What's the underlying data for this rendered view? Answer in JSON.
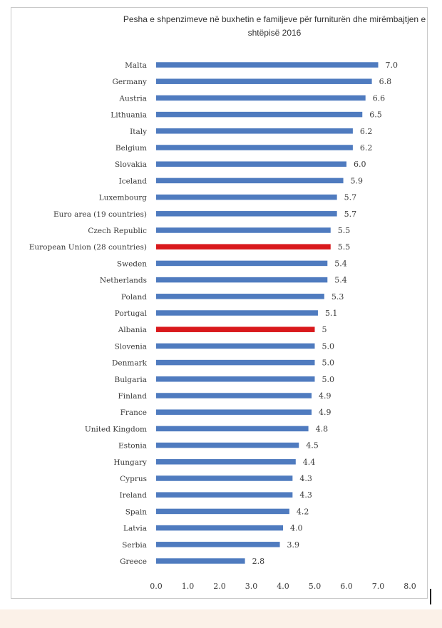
{
  "chart_data": {
    "type": "bar",
    "orientation": "horizontal",
    "title": "Pesha e shpenzimeve në buxhetin e familjeve për furniturën dhe mirëmbajtjen e shtëpisë  2016",
    "categories": [
      "Malta",
      "Germany",
      "Austria",
      "Lithuania",
      "Italy",
      "Belgium",
      "Slovakia",
      "Iceland",
      "Luxembourg",
      "Euro area (19 countries)",
      "Czech Republic",
      "European Union (28 countries)",
      "Sweden",
      "Netherlands",
      "Poland",
      "Portugal",
      "Albania",
      "Slovenia",
      "Denmark",
      "Bulgaria",
      "Finland",
      "France",
      "United Kingdom",
      "Estonia",
      "Hungary",
      "Cyprus",
      "Ireland",
      "Spain",
      "Latvia",
      "Serbia",
      "Greece"
    ],
    "values": [
      7.0,
      6.8,
      6.6,
      6.5,
      6.2,
      6.2,
      6.0,
      5.9,
      5.7,
      5.7,
      5.5,
      5.5,
      5.4,
      5.4,
      5.3,
      5.1,
      5,
      5.0,
      5.0,
      5.0,
      4.9,
      4.9,
      4.8,
      4.5,
      4.4,
      4.3,
      4.3,
      4.2,
      4.0,
      3.9,
      2.8
    ],
    "value_labels": [
      "7.0",
      "6.8",
      "6.6",
      "6.5",
      "6.2",
      "6.2",
      "6.0",
      "5.9",
      "5.7",
      "5.7",
      "5.5",
      "5.5",
      "5.4",
      "5.4",
      "5.3",
      "5.1",
      "5",
      "5.0",
      "5.0",
      "5.0",
      "4.9",
      "4.9",
      "4.8",
      "4.5",
      "4.4",
      "4.3",
      "4.3",
      "4.2",
      "4.0",
      "3.9",
      "2.8"
    ],
    "highlighted": [
      "European Union (28 countries)",
      "Albania"
    ],
    "xlim": [
      0,
      8.0
    ],
    "xticks": [
      "0.0",
      "1.0",
      "2.0",
      "3.0",
      "4.0",
      "5.0",
      "6.0",
      "7.0",
      "8.0"
    ],
    "grid": false,
    "legend": "none",
    "colors": {
      "bar": "#4f7bbf",
      "highlight": "#d9191c"
    }
  }
}
